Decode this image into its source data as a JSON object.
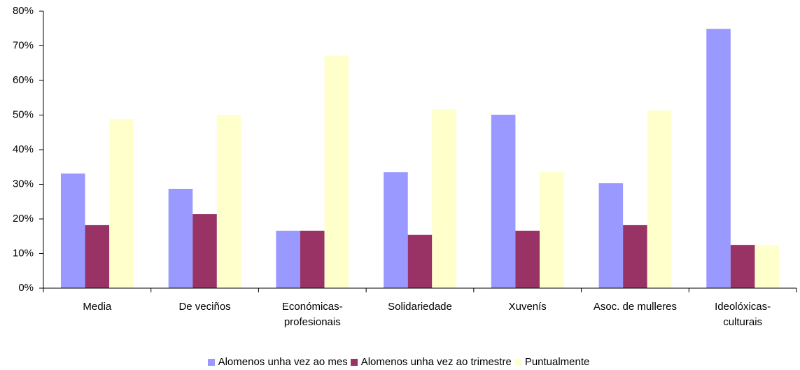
{
  "chart_data": {
    "type": "bar",
    "categories": [
      "Media",
      "De veciños",
      "Económicas-\nprofesionais",
      "Solidariedade",
      "Xuvenís",
      "Asoc. de mulleres",
      "Ideolóxicas-\nculturais"
    ],
    "series": [
      {
        "name": "Alomenos unha vez ao mes",
        "color": "#9999ff",
        "values": [
          33.1,
          28.7,
          16.6,
          33.5,
          50.1,
          30.3,
          74.9
        ]
      },
      {
        "name": "Alomenos unha vez ao trimestre",
        "color": "#993366",
        "values": [
          18.2,
          21.4,
          16.6,
          15.4,
          16.6,
          18.2,
          12.5
        ]
      },
      {
        "name": "Puntualmente",
        "color": "#ffffcc",
        "values": [
          48.9,
          50.1,
          67.1,
          51.7,
          33.5,
          51.3,
          12.5
        ]
      }
    ],
    "ylim": [
      0,
      80
    ],
    "yticks": [
      {
        "value": 0,
        "label": "0%"
      },
      {
        "value": 10,
        "label": "10%"
      },
      {
        "value": 20,
        "label": "20%"
      },
      {
        "value": 30,
        "label": "30%"
      },
      {
        "value": 40,
        "label": "40%"
      },
      {
        "value": 50,
        "label": "50%"
      },
      {
        "value": 60,
        "label": "60%"
      },
      {
        "value": 70,
        "label": "70%"
      },
      {
        "value": 80,
        "label": "80%"
      }
    ],
    "grid": false,
    "legend": "bottom"
  }
}
